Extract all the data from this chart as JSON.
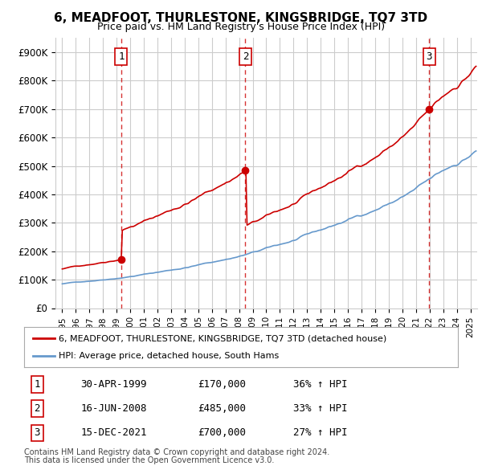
{
  "title": "6, MEADFOOT, THURLESTONE, KINGSBRIDGE, TQ7 3TD",
  "subtitle": "Price paid vs. HM Land Registry's House Price Index (HPI)",
  "legend_line1": "6, MEADFOOT, THURLESTONE, KINGSBRIDGE, TQ7 3TD (detached house)",
  "legend_line2": "HPI: Average price, detached house, South Hams",
  "footnote1": "Contains HM Land Registry data © Crown copyright and database right 2024.",
  "footnote2": "This data is licensed under the Open Government Licence v3.0.",
  "table": [
    {
      "num": "1",
      "date": "30-APR-1999",
      "price": "£170,000",
      "change": "36% ↑ HPI"
    },
    {
      "num": "2",
      "date": "16-JUN-2008",
      "price": "£485,000",
      "change": "33% ↑ HPI"
    },
    {
      "num": "3",
      "date": "15-DEC-2021",
      "price": "£700,000",
      "change": "27% ↑ HPI"
    }
  ],
  "sale_dates": [
    1999.33,
    2008.46,
    2021.96
  ],
  "sale_prices": [
    170000,
    485000,
    700000
  ],
  "sale_labels": [
    "1",
    "2",
    "3"
  ],
  "ylim": [
    0,
    950000
  ],
  "yticks": [
    0,
    100000,
    200000,
    300000,
    400000,
    500000,
    600000,
    700000,
    800000,
    900000
  ],
  "ytick_labels": [
    "£0",
    "£100K",
    "£200K",
    "£300K",
    "£400K",
    "£500K",
    "£600K",
    "£700K",
    "£800K",
    "£900K"
  ],
  "xlim_start": 1994.5,
  "xlim_end": 2025.5,
  "red_color": "#cc0000",
  "blue_color": "#6699cc",
  "vline_color": "#cc0000",
  "grid_color": "#cccccc",
  "background_color": "#ffffff",
  "sale_marker_color": "#cc0000"
}
